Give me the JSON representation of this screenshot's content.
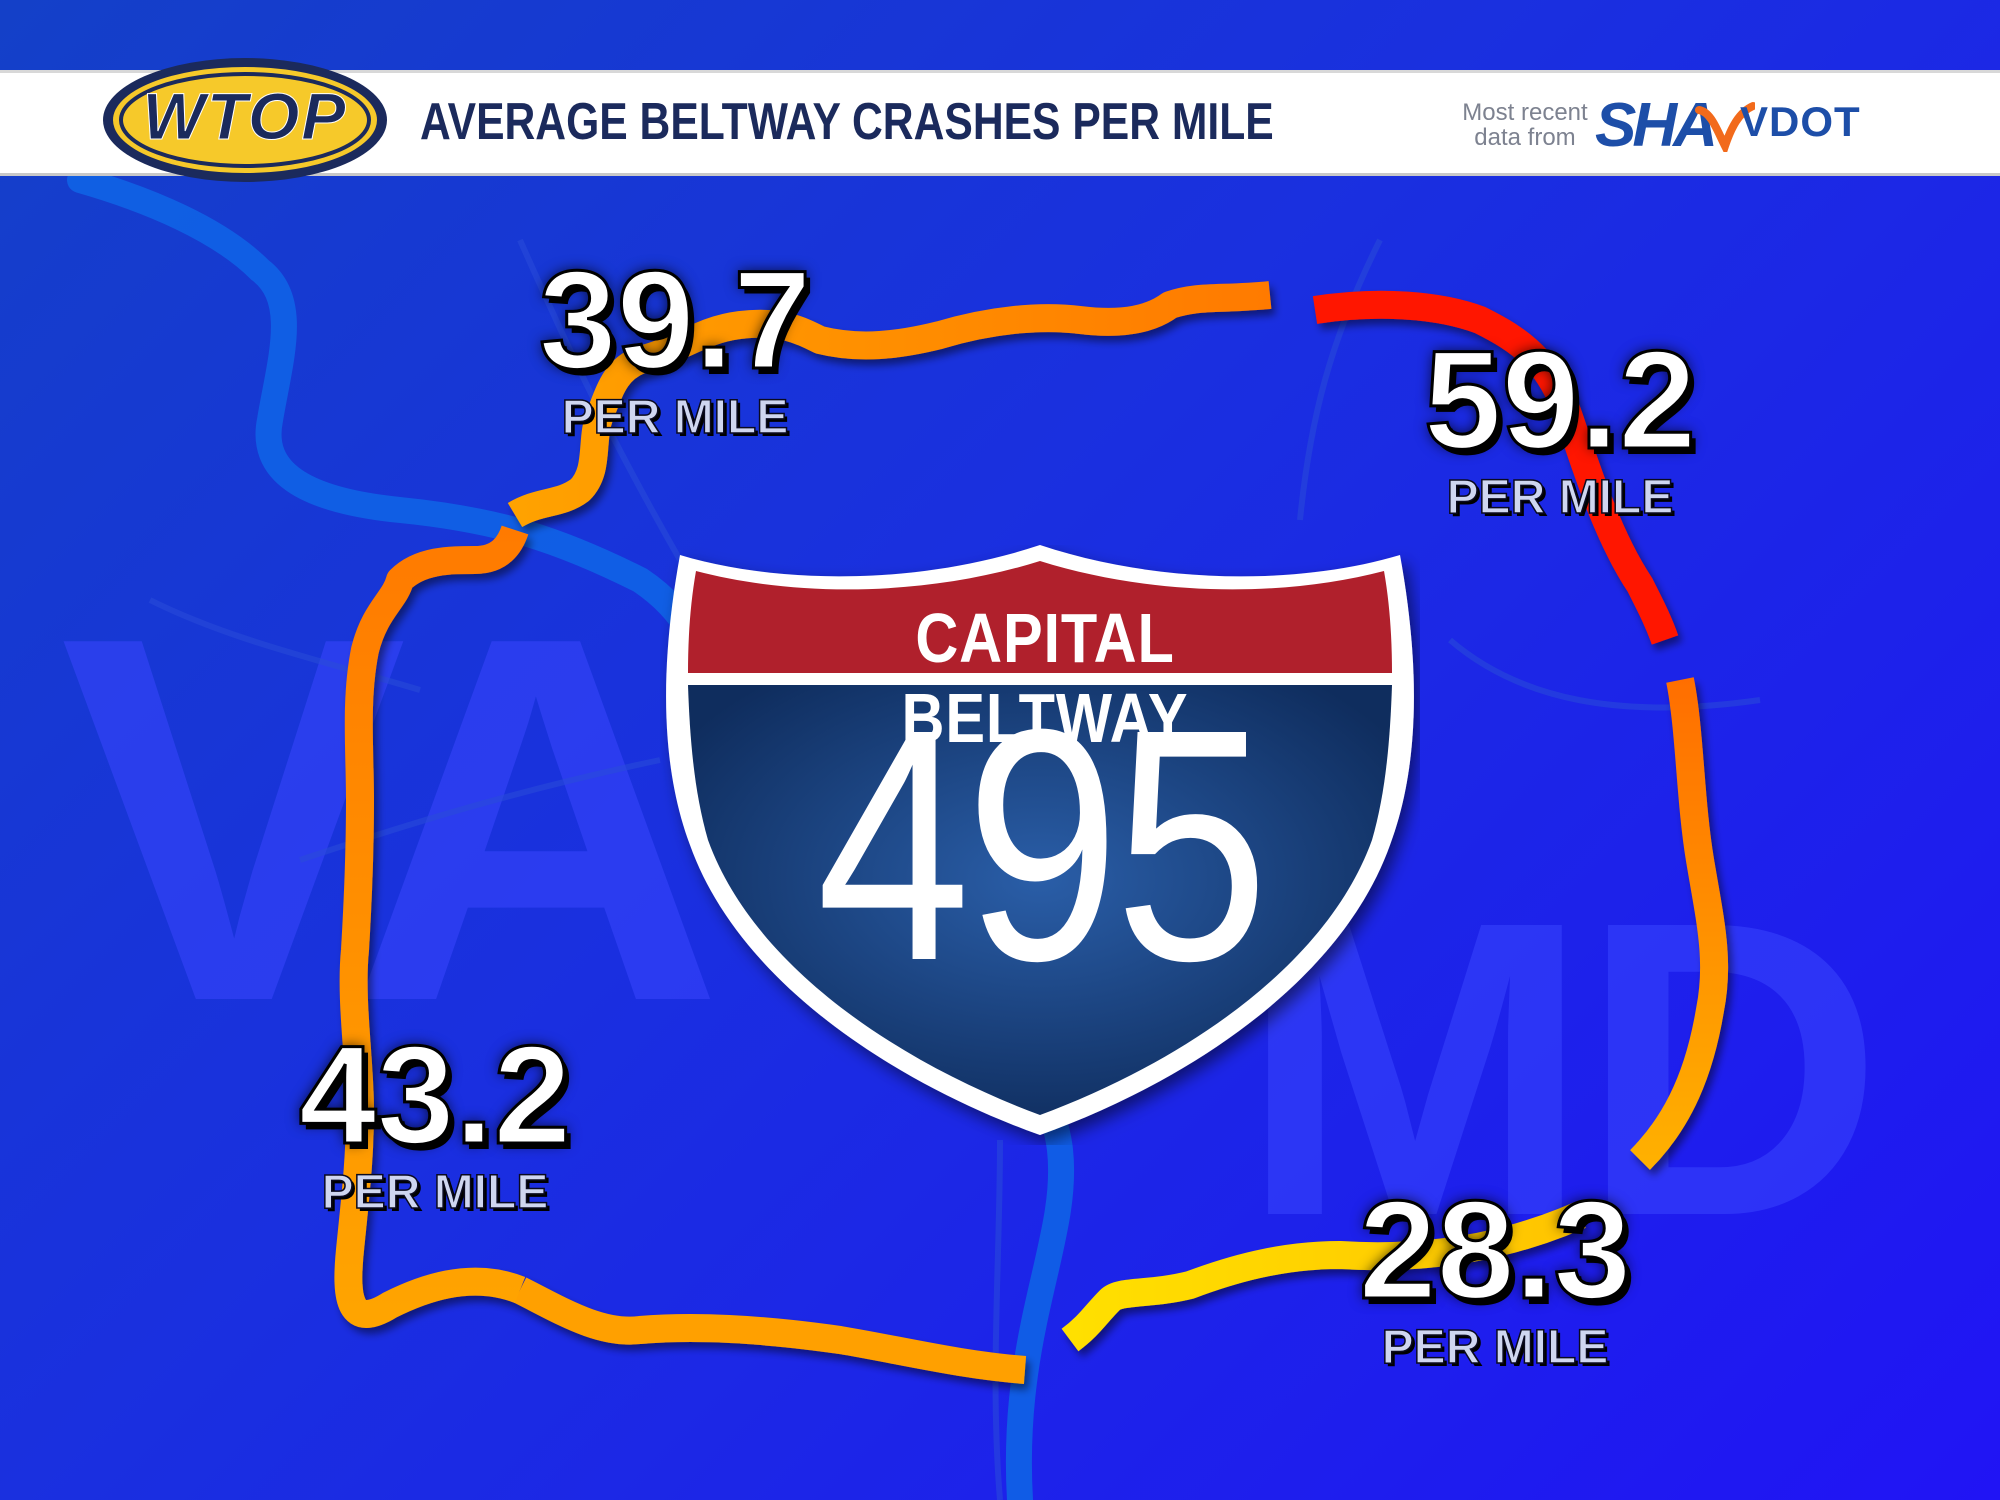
{
  "header": {
    "logo_text": "WTOP",
    "title": "AVERAGE BELTWAY CRASHES PER MILE",
    "source_note_line1": "Most recent",
    "source_note_line2": "data from",
    "sha_logo": "SHA",
    "vdot_logo": "VDOT"
  },
  "background": {
    "state_left": "VA",
    "state_right": "MD"
  },
  "sign": {
    "top_text": "CAPITAL BELTWAY",
    "route_number": "495"
  },
  "segments": [
    {
      "id": "northwest",
      "value": "39.7",
      "unit": "PER MILE",
      "color": "#ff8a00"
    },
    {
      "id": "northeast",
      "value": "59.2",
      "unit": "PER MILE",
      "color": "#ff1a00"
    },
    {
      "id": "southwest",
      "value": "43.2",
      "unit": "PER MILE",
      "color": "#ff8c00"
    },
    {
      "id": "southeast",
      "value": "28.3",
      "unit": "PER MILE",
      "color": "#ffd200"
    }
  ],
  "colors": {
    "background": "#1a2fe0",
    "river": "#0f63e6",
    "shield_red": "#b0202c",
    "shield_blue": "#163a78",
    "title_text": "#1b2a5c"
  }
}
